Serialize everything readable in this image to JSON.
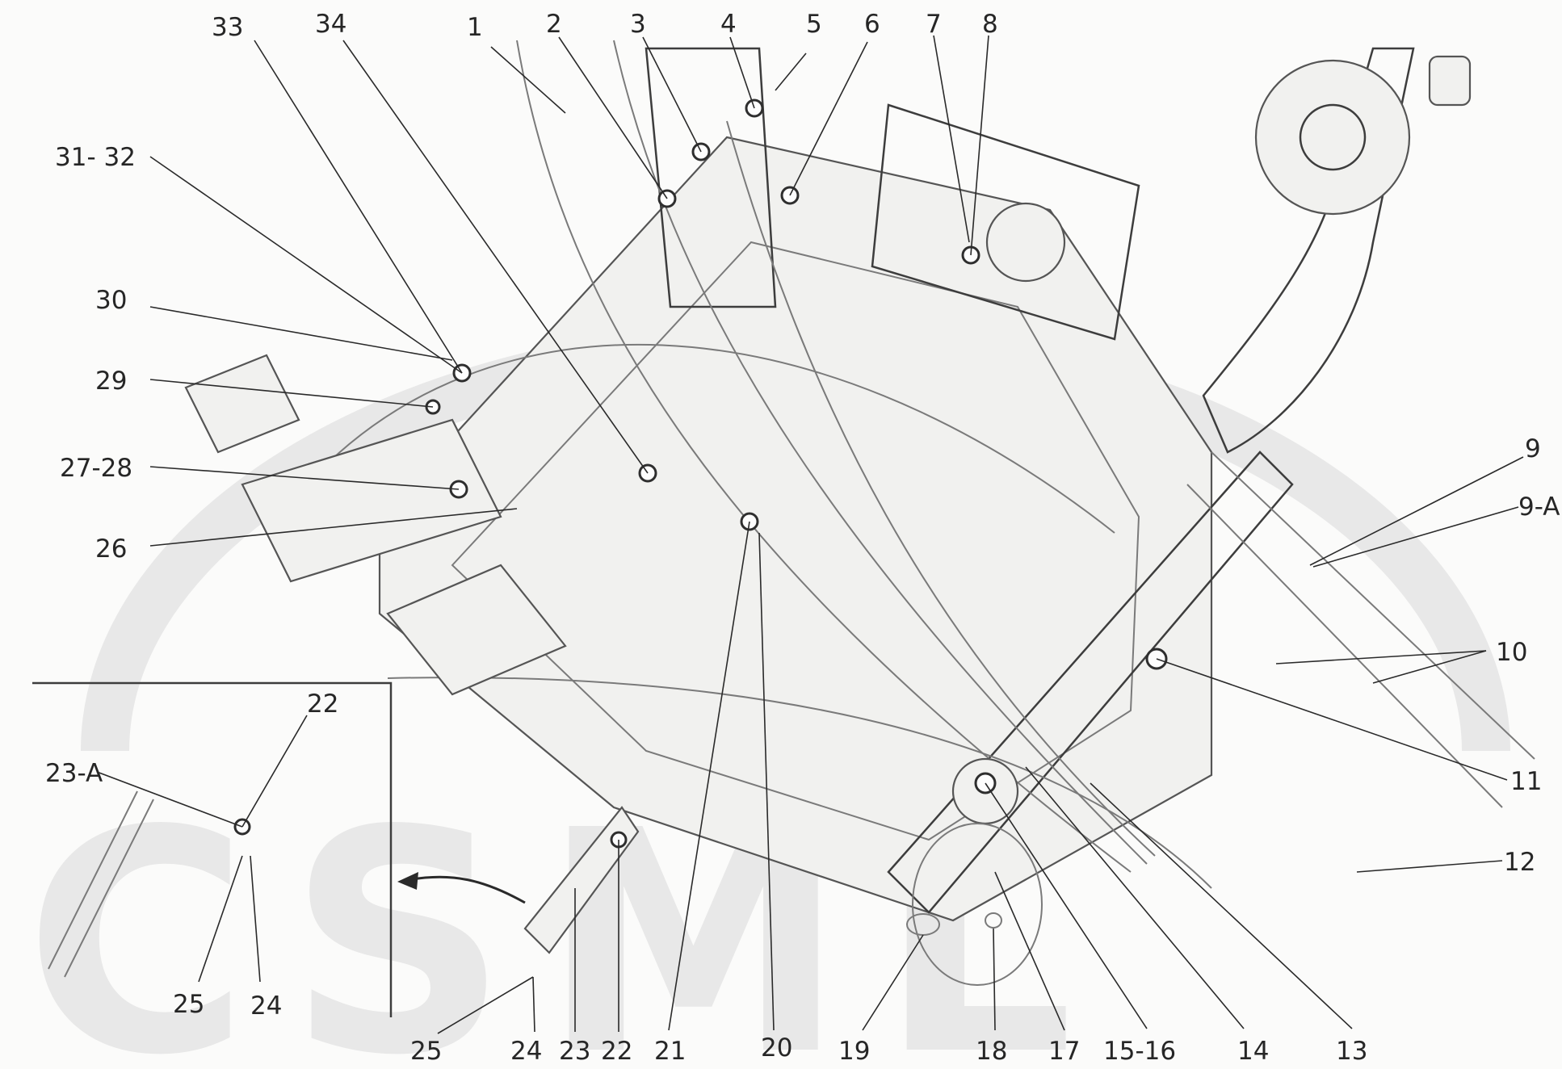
{
  "watermark": "CSML",
  "labels": [
    {
      "id": "33",
      "text": "33"
    },
    {
      "id": "34",
      "text": "34"
    },
    {
      "id": "1",
      "text": "1"
    },
    {
      "id": "2",
      "text": "2"
    },
    {
      "id": "3",
      "text": "3"
    },
    {
      "id": "4",
      "text": "4"
    },
    {
      "id": "5",
      "text": "5"
    },
    {
      "id": "6",
      "text": "6"
    },
    {
      "id": "7",
      "text": "7"
    },
    {
      "id": "8",
      "text": "8"
    },
    {
      "id": "31-32",
      "text": "31- 32"
    },
    {
      "id": "30",
      "text": "30"
    },
    {
      "id": "29",
      "text": "29"
    },
    {
      "id": "27-28",
      "text": "27-28"
    },
    {
      "id": "26",
      "text": "26"
    },
    {
      "id": "9",
      "text": "9"
    },
    {
      "id": "9-A",
      "text": "9-A"
    },
    {
      "id": "10",
      "text": "10"
    },
    {
      "id": "11",
      "text": "11"
    },
    {
      "id": "12",
      "text": "12"
    },
    {
      "id": "22-inset",
      "text": "22"
    },
    {
      "id": "23-A",
      "text": "23-A"
    },
    {
      "id": "25-inset",
      "text": "25"
    },
    {
      "id": "24-inset",
      "text": "24"
    },
    {
      "id": "25",
      "text": "25"
    },
    {
      "id": "24",
      "text": "24"
    },
    {
      "id": "23",
      "text": "23"
    },
    {
      "id": "22",
      "text": "22"
    },
    {
      "id": "21",
      "text": "21"
    },
    {
      "id": "20",
      "text": "20"
    },
    {
      "id": "19",
      "text": "19"
    },
    {
      "id": "18",
      "text": "18"
    },
    {
      "id": "17",
      "text": "17"
    },
    {
      "id": "15-16",
      "text": "15-16"
    },
    {
      "id": "14",
      "text": "14"
    },
    {
      "id": "13",
      "text": "13"
    }
  ]
}
